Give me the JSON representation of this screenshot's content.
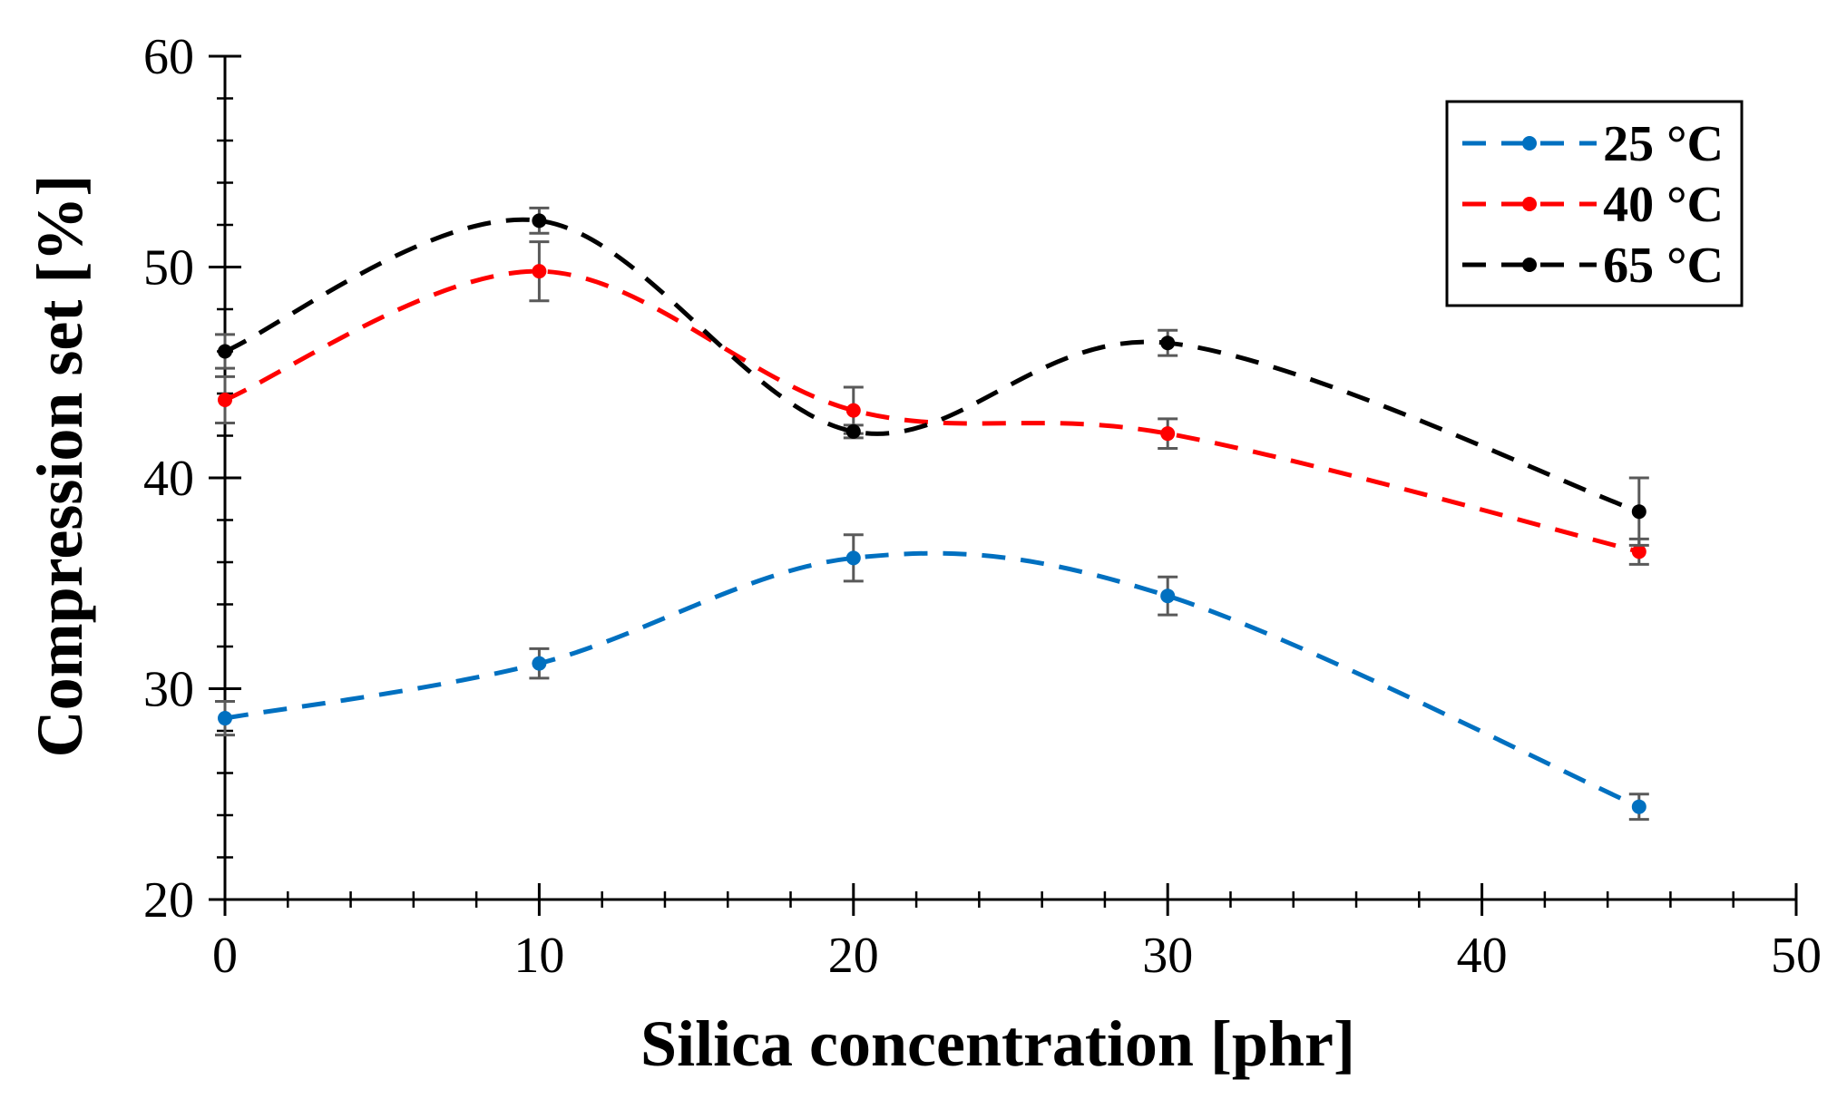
{
  "chart_data": {
    "type": "line",
    "title": "",
    "xlabel": "Silica concentration [phr]",
    "ylabel": "Compression set [%]",
    "xlim": [
      0,
      50
    ],
    "ylim": [
      20,
      60
    ],
    "x_ticks": [
      0,
      10,
      20,
      30,
      40,
      50
    ],
    "y_ticks": [
      20,
      30,
      40,
      50,
      60
    ],
    "x_tick_labels": [
      "0",
      "10",
      "20",
      "30",
      "40",
      "50"
    ],
    "y_tick_labels": [
      "20",
      "30",
      "40",
      "50",
      "60"
    ],
    "legend_position": "top-right",
    "line_style": "dashed, smoothed",
    "x": [
      0,
      10,
      20,
      30,
      45
    ],
    "series": [
      {
        "name": "25 °C",
        "color": "#0070C0",
        "values": [
          28.6,
          31.2,
          36.2,
          34.4,
          24.4
        ],
        "errors": [
          0.8,
          0.7,
          1.1,
          0.9,
          0.6
        ]
      },
      {
        "name": "40 °C",
        "color": "#FF0000",
        "values": [
          43.7,
          49.8,
          43.2,
          42.1,
          36.5
        ],
        "errors": [
          1.1,
          1.4,
          1.1,
          0.7,
          0.6
        ]
      },
      {
        "name": "65 °C",
        "color": "#000000",
        "values": [
          46.0,
          52.2,
          42.2,
          46.4,
          38.4
        ],
        "errors": [
          0.8,
          0.6,
          0.3,
          0.6,
          1.6
        ]
      }
    ],
    "errorbar_color": "#595959",
    "grid": false
  }
}
